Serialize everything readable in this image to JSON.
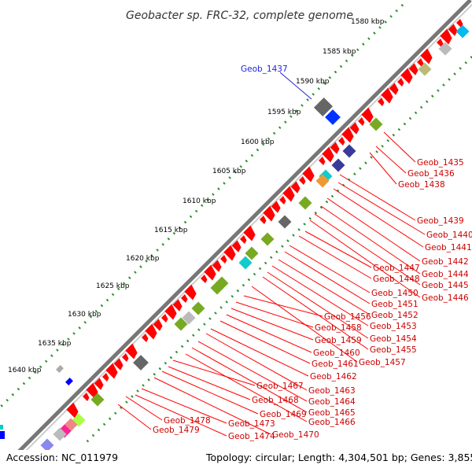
{
  "title": "Geobacter sp. FRC-32, complete genome",
  "footer": {
    "accession": "Accession: NC_011979",
    "summary": "Topology: circular; Length: 4,304,501 bp; Genes: 3,855"
  },
  "colors": {
    "forward_cds": "#ff0000",
    "backbone": "#777777",
    "tick_dots": "#2f8f2f",
    "label_line": "#ff0000",
    "highlight_label": "#1f1fd8"
  },
  "kbp_ticks": [
    "1580 kbp",
    "1585 kbp",
    "1590 kbp",
    "1595 kbp",
    "1600 kbp",
    "1605 kbp",
    "1610 kbp",
    "1615 kbp",
    "1620 kbp",
    "1625 kbp",
    "1630 kbp",
    "1635 kbp",
    "1640 kbp"
  ],
  "gene_labels_highlight": [
    "Geob_1437"
  ],
  "gene_labels_right": [
    "Geob_1435",
    "Geob_1436",
    "Geob_1438",
    "Geob_1439",
    "Geob_1440",
    "Geob_1441",
    "Geob_1442",
    "Geob_1444",
    "Geob_1445",
    "Geob_1446"
  ],
  "gene_labels_middle": [
    "Geob_1447",
    "Geob_1448",
    "Geob_1450",
    "Geob_1451",
    "Geob_1452",
    "Geob_1453",
    "Geob_1454",
    "Geob_1455",
    "Geob_1457"
  ],
  "gene_labels_inner": [
    "Geob_1456",
    "Geob_1458",
    "Geob_1459",
    "Geob_1460",
    "Geob_1461",
    "Geob_1462",
    "Geob_1463",
    "Geob_1464",
    "Geob_1465",
    "Geob_1466"
  ],
  "gene_labels_lower": [
    "Geob_1467",
    "Geob_1468",
    "Geob_1469",
    "Geob_1470",
    "Geob_1473",
    "Geob_1474"
  ],
  "gene_labels_left": [
    "Geob_1478",
    "Geob_1479"
  ]
}
